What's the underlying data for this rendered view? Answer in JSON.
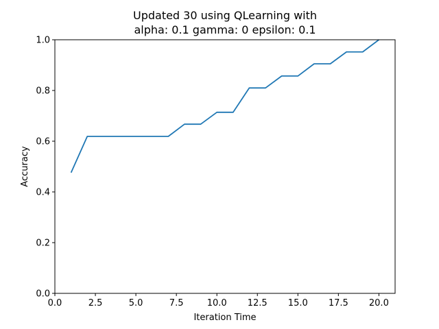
{
  "chart_data": {
    "type": "line",
    "title": "Updated 30 using QLearning with",
    "subtitle": "alpha: 0.1 gamma: 0 epsilon: 0.1",
    "xlabel": "Iteration Time",
    "ylabel": "Accuracy",
    "xlim": [
      0,
      21
    ],
    "ylim": [
      0,
      1
    ],
    "x_ticks": [
      0,
      2.5,
      5,
      7.5,
      10,
      12.5,
      15,
      17.5,
      20
    ],
    "x_tick_labels": [
      "0.0",
      "2.5",
      "5.0",
      "7.5",
      "10.0",
      "12.5",
      "15.0",
      "17.5",
      "20.0"
    ],
    "y_ticks": [
      0,
      0.2,
      0.4,
      0.6,
      0.8,
      1.0
    ],
    "y_tick_labels": [
      "0.0",
      "0.2",
      "0.4",
      "0.6",
      "0.8",
      "1.0"
    ],
    "grid": false,
    "series": [
      {
        "color": "#1f77b4",
        "x": [
          1,
          2,
          3,
          4,
          5,
          6,
          7,
          8,
          9,
          10,
          11,
          12,
          13,
          14,
          15,
          16,
          17,
          18,
          19,
          20
        ],
        "y": [
          0.476,
          0.619,
          0.619,
          0.619,
          0.619,
          0.619,
          0.619,
          0.667,
          0.667,
          0.714,
          0.714,
          0.81,
          0.81,
          0.857,
          0.857,
          0.905,
          0.905,
          0.952,
          0.952,
          1.0
        ]
      }
    ]
  }
}
